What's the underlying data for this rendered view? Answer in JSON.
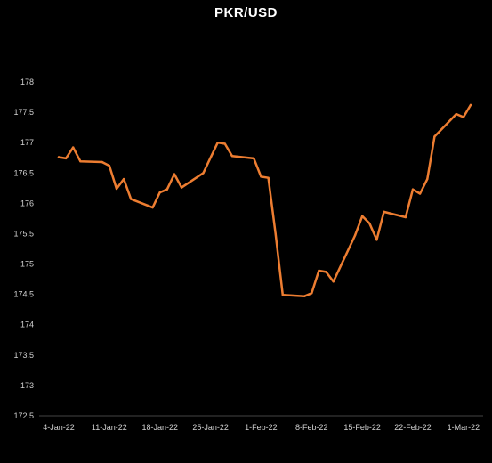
{
  "chart_data": {
    "type": "line",
    "title": "PKR/USD",
    "xlabel": "",
    "ylabel": "",
    "ylim": [
      172.5,
      178
    ],
    "yticks": [
      "172.5",
      "173",
      "173.5",
      "174",
      "174.5",
      "175",
      "175.5",
      "176",
      "176.5",
      "177",
      "177.5",
      "178"
    ],
    "xticks": [
      "4-Jan-22",
      "11-Jan-22",
      "18-Jan-22",
      "25-Jan-22",
      "1-Feb-22",
      "8-Feb-22",
      "15-Feb-22",
      "22-Feb-22",
      "1-Mar-22"
    ],
    "grid": false,
    "legend": "none",
    "line_color": "#ED7D31",
    "background": "#000000",
    "series": [
      {
        "x": [
          "2022-01-04",
          "2022-01-05",
          "2022-01-06",
          "2022-01-07",
          "2022-01-10",
          "2022-01-11",
          "2022-01-12",
          "2022-01-13",
          "2022-01-14",
          "2022-01-17",
          "2022-01-18",
          "2022-01-19",
          "2022-01-20",
          "2022-01-21",
          "2022-01-24",
          "2022-01-25",
          "2022-01-26",
          "2022-01-27",
          "2022-01-28",
          "2022-01-31",
          "2022-02-01",
          "2022-02-02",
          "2022-02-03",
          "2022-02-04",
          "2022-02-07",
          "2022-02-08",
          "2022-02-09",
          "2022-02-10",
          "2022-02-11",
          "2022-02-14",
          "2022-02-15",
          "2022-02-16",
          "2022-02-17",
          "2022-02-18",
          "2022-02-21",
          "2022-02-22",
          "2022-02-23",
          "2022-02-24",
          "2022-02-25",
          "2022-02-28",
          "2022-03-01",
          "2022-03-02"
        ],
        "values": [
          176.76,
          176.74,
          176.92,
          176.69,
          176.68,
          176.62,
          176.24,
          176.4,
          176.07,
          175.93,
          176.18,
          176.23,
          176.48,
          176.26,
          176.5,
          176.75,
          177.0,
          176.98,
          176.78,
          176.74,
          176.44,
          176.42,
          175.5,
          174.49,
          174.47,
          174.52,
          174.89,
          174.87,
          174.71,
          175.47,
          175.79,
          175.67,
          175.4,
          175.86,
          175.77,
          176.23,
          176.16,
          176.4,
          177.1,
          177.47,
          177.42,
          177.62
        ]
      }
    ]
  }
}
